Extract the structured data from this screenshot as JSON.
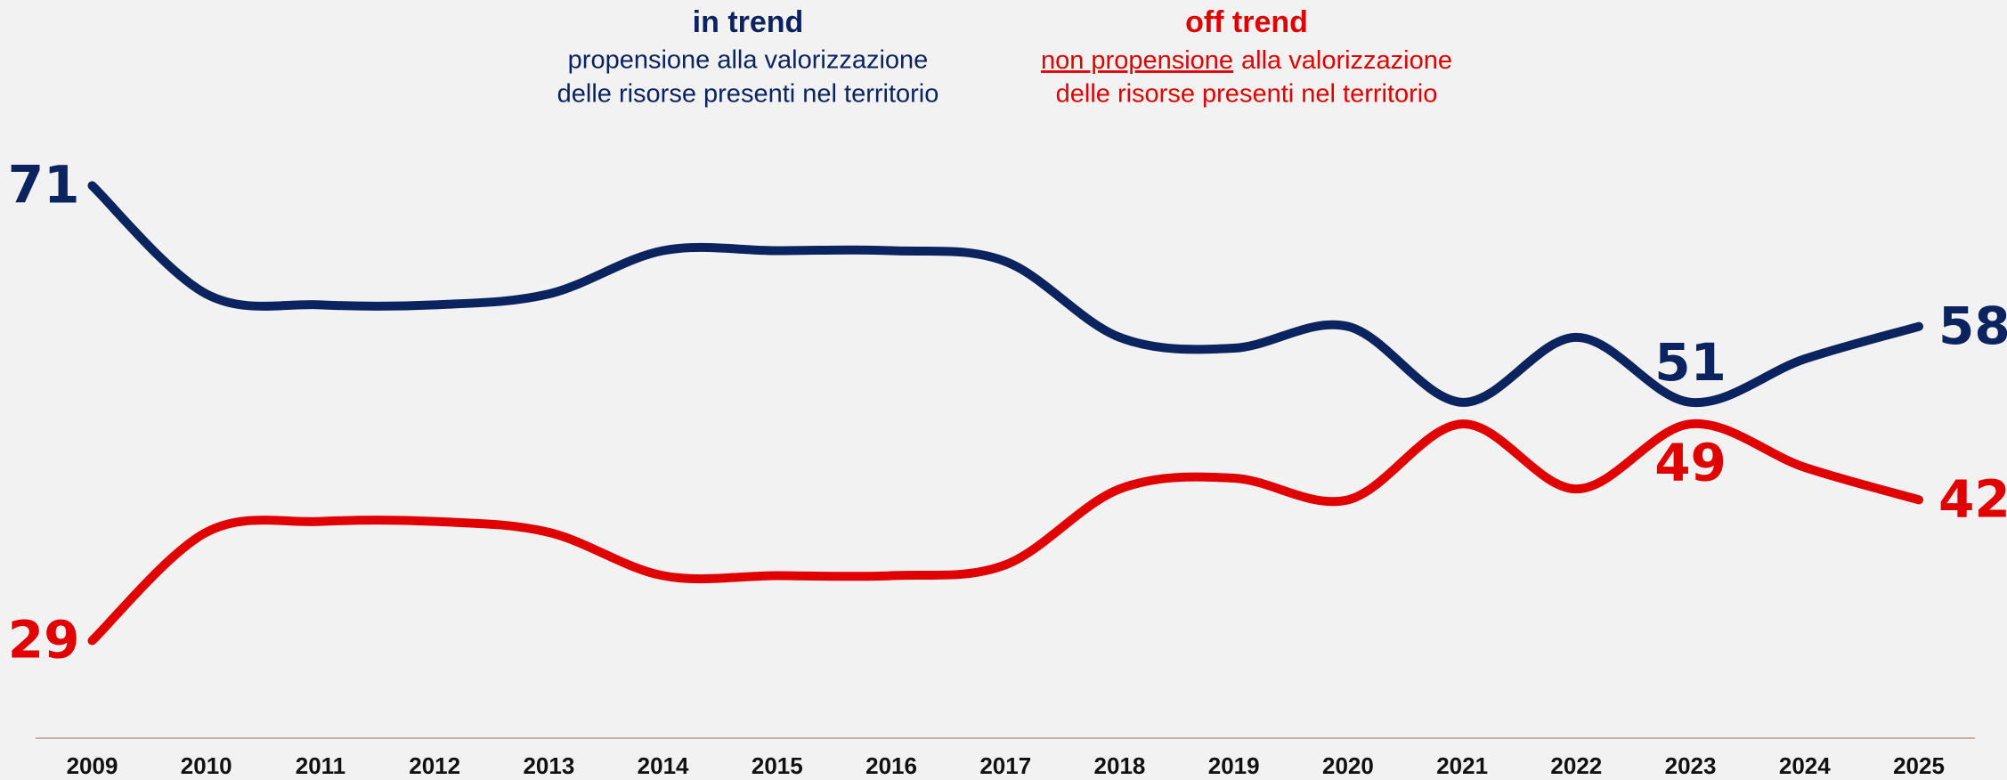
{
  "chart_data": {
    "type": "line",
    "categories": [
      "2009",
      "2010",
      "2011",
      "2012",
      "2013",
      "2014",
      "2015",
      "2016",
      "2017",
      "2018",
      "2019",
      "2020",
      "2021",
      "2022",
      "2023",
      "2024",
      "2025"
    ],
    "ylim": [
      20,
      80
    ],
    "series": [
      {
        "name": "in trend",
        "color": "#0b2460",
        "description": [
          "propensione alla valorizzazione",
          "delle risorse presenti nel territorio"
        ],
        "values": [
          71,
          61,
          60,
          60,
          61,
          65,
          65,
          65,
          64,
          57,
          56,
          58,
          51,
          57,
          51,
          55,
          58
        ]
      },
      {
        "name": "off trend",
        "color": "#e00000",
        "description": [
          "non propensione",
          "alla valorizzazione",
          "delle risorse presenti nel territorio"
        ],
        "values": [
          29,
          39,
          40,
          40,
          39,
          35,
          35,
          35,
          36,
          43,
          44,
          42,
          49,
          43,
          49,
          45,
          42
        ]
      }
    ],
    "labeled_points": [
      0,
      14,
      16
    ]
  }
}
